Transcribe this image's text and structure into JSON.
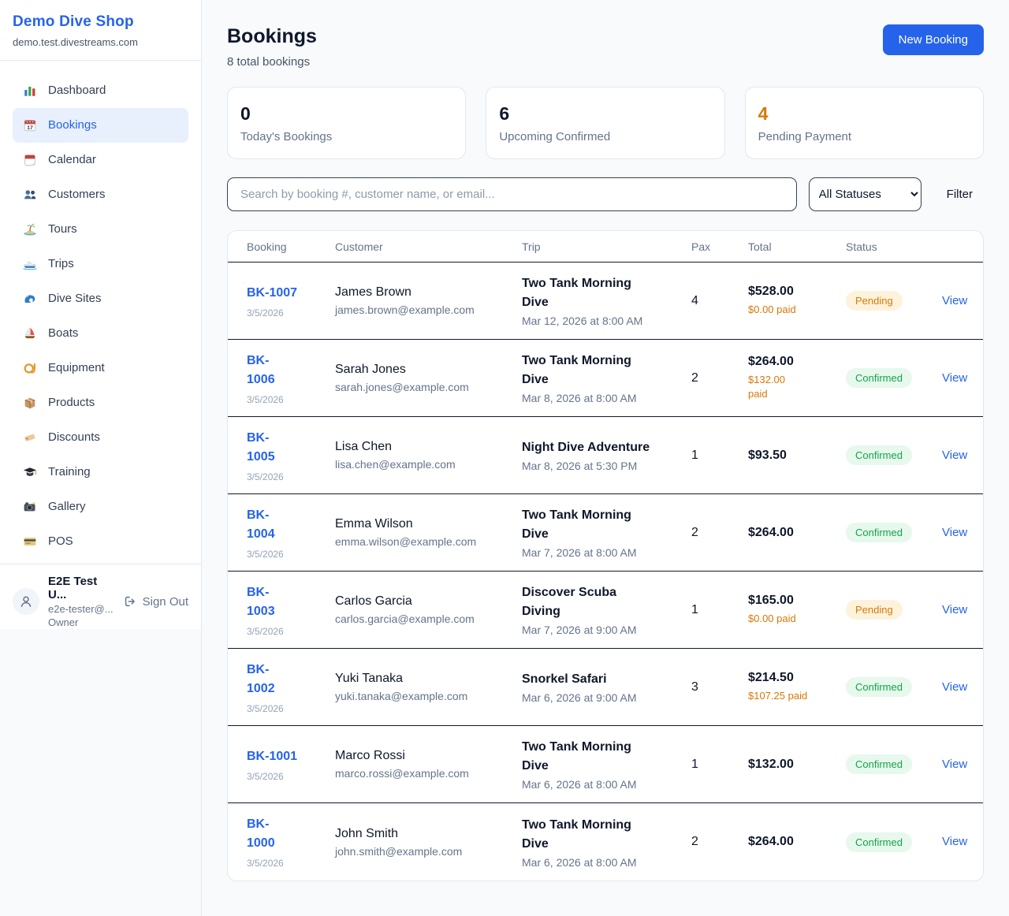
{
  "colors": {
    "accent": "#2563eb",
    "pending_text": "#d97706",
    "pending_bg": "#fdf3dc",
    "confirmed_text": "#16a34a",
    "confirmed_bg": "#e7f8ed"
  },
  "sidebar": {
    "brand": {
      "name": "Demo Dive Shop",
      "domain": "demo.test.divestreams.com"
    },
    "items": [
      {
        "name": "sidebar-item-dashboard",
        "label": "Dashboard",
        "icon": "bar-chart",
        "active_class": ""
      },
      {
        "name": "sidebar-item-bookings",
        "label": "Bookings",
        "icon": "calendar-date",
        "active_class": "active"
      },
      {
        "name": "sidebar-item-calendar",
        "label": "Calendar",
        "icon": "tearoff-calendar",
        "active_class": ""
      },
      {
        "name": "sidebar-item-customers",
        "label": "Customers",
        "icon": "people",
        "active_class": ""
      },
      {
        "name": "sidebar-item-tours",
        "label": "Tours",
        "icon": "island",
        "active_class": ""
      },
      {
        "name": "sidebar-item-trips",
        "label": "Trips",
        "icon": "speedboat",
        "active_class": ""
      },
      {
        "name": "sidebar-item-dive-sites",
        "label": "Dive Sites",
        "icon": "wave",
        "active_class": ""
      },
      {
        "name": "sidebar-item-boats",
        "label": "Boats",
        "icon": "sailboat",
        "active_class": ""
      },
      {
        "name": "sidebar-item-equipment",
        "label": "Equipment",
        "icon": "diving-mask",
        "active_class": ""
      },
      {
        "name": "sidebar-item-products",
        "label": "Products",
        "icon": "package",
        "active_class": ""
      },
      {
        "name": "sidebar-item-discounts",
        "label": "Discounts",
        "icon": "tag",
        "active_class": ""
      },
      {
        "name": "sidebar-item-training",
        "label": "Training",
        "icon": "graduation-cap",
        "active_class": ""
      },
      {
        "name": "sidebar-item-gallery",
        "label": "Gallery",
        "icon": "camera",
        "active_class": ""
      },
      {
        "name": "sidebar-item-pos",
        "label": "POS",
        "icon": "credit-card",
        "active_class": ""
      }
    ],
    "user": {
      "name": "E2E Test U...",
      "email": "e2e-tester@...",
      "role": "Owner",
      "sign_out": "Sign Out"
    }
  },
  "header": {
    "title": "Bookings",
    "subtitle": "8 total bookings",
    "new_booking_label": "New Booking"
  },
  "stats": [
    {
      "value": "0",
      "label": "Today's Bookings",
      "value_color": "#0f172a"
    },
    {
      "value": "6",
      "label": "Upcoming Confirmed",
      "value_color": "#0f172a"
    },
    {
      "value": "4",
      "label": "Pending Payment",
      "value_color": "#d97706"
    }
  ],
  "filters": {
    "search_placeholder": "Search by booking #, customer name, or email...",
    "status_select_value": "All Statuses",
    "filter_label": "Filter"
  },
  "table": {
    "headers": [
      "Booking",
      "Customer",
      "Trip",
      "Pax",
      "Total",
      "Status"
    ],
    "view_label": "View",
    "rows": [
      {
        "id_lines": [
          "BK-1007"
        ],
        "date": "3/5/2026",
        "customer": "James Brown",
        "email": "james.brown@example.com",
        "trip_lines": [
          "Two Tank Morning",
          "Dive"
        ],
        "trip_when": "Mar 12, 2026 at 8:00 AM",
        "pax": "4",
        "total": "$528.00",
        "paid": "$0.00 paid",
        "status": "Pending",
        "status_type": "pending"
      },
      {
        "id_lines": [
          "BK-",
          "1006"
        ],
        "date": "3/5/2026",
        "customer": "Sarah Jones",
        "email": "sarah.jones@example.com",
        "trip_lines": [
          "Two Tank Morning",
          "Dive"
        ],
        "trip_when": "Mar 8, 2026 at 8:00 AM",
        "pax": "2",
        "total": "$264.00",
        "paid_lines": [
          "$132.00",
          "paid"
        ],
        "status": "Confirmed",
        "status_type": "confirmed"
      },
      {
        "id_lines": [
          "BK-",
          "1005"
        ],
        "date": "3/5/2026",
        "customer": "Lisa Chen",
        "email": "lisa.chen@example.com",
        "trip_lines": [
          "Night Dive Adventure"
        ],
        "trip_when": "Mar 8, 2026 at 5:30 PM",
        "pax": "1",
        "total": "$93.50",
        "status": "Confirmed",
        "status_type": "confirmed"
      },
      {
        "id_lines": [
          "BK-",
          "1004"
        ],
        "date": "3/5/2026",
        "customer": "Emma Wilson",
        "email": "emma.wilson@example.com",
        "trip_lines": [
          "Two Tank Morning",
          "Dive"
        ],
        "trip_when": "Mar 7, 2026 at 8:00 AM",
        "pax": "2",
        "total": "$264.00",
        "status": "Confirmed",
        "status_type": "confirmed"
      },
      {
        "id_lines": [
          "BK-",
          "1003"
        ],
        "date": "3/5/2026",
        "customer": "Carlos Garcia",
        "email": "carlos.garcia@example.com",
        "trip_lines": [
          "Discover Scuba",
          "Diving"
        ],
        "trip_when": "Mar 7, 2026 at 9:00 AM",
        "pax": "1",
        "total": "$165.00",
        "paid": "$0.00 paid",
        "status": "Pending",
        "status_type": "pending"
      },
      {
        "id_lines": [
          "BK-",
          "1002"
        ],
        "date": "3/5/2026",
        "customer": "Yuki Tanaka",
        "email": "yuki.tanaka@example.com",
        "trip_lines": [
          "Snorkel Safari"
        ],
        "trip_when": "Mar 6, 2026 at 9:00 AM",
        "pax": "3",
        "total": "$214.50",
        "paid": "$107.25 paid",
        "status": "Confirmed",
        "status_type": "confirmed"
      },
      {
        "id_lines": [
          "BK-1001"
        ],
        "date": "3/5/2026",
        "customer": "Marco Rossi",
        "email": "marco.rossi@example.com",
        "trip_lines": [
          "Two Tank Morning",
          "Dive"
        ],
        "trip_when": "Mar 6, 2026 at 8:00 AM",
        "pax": "1",
        "total": "$132.00",
        "status": "Confirmed",
        "status_type": "confirmed"
      },
      {
        "id_lines": [
          "BK-",
          "1000"
        ],
        "date": "3/5/2026",
        "customer": "John Smith",
        "email": "john.smith@example.com",
        "trip_lines": [
          "Two Tank Morning",
          "Dive"
        ],
        "trip_when": "Mar 6, 2026 at 8:00 AM",
        "pax": "2",
        "total": "$264.00",
        "status": "Confirmed",
        "status_type": "confirmed"
      }
    ]
  }
}
